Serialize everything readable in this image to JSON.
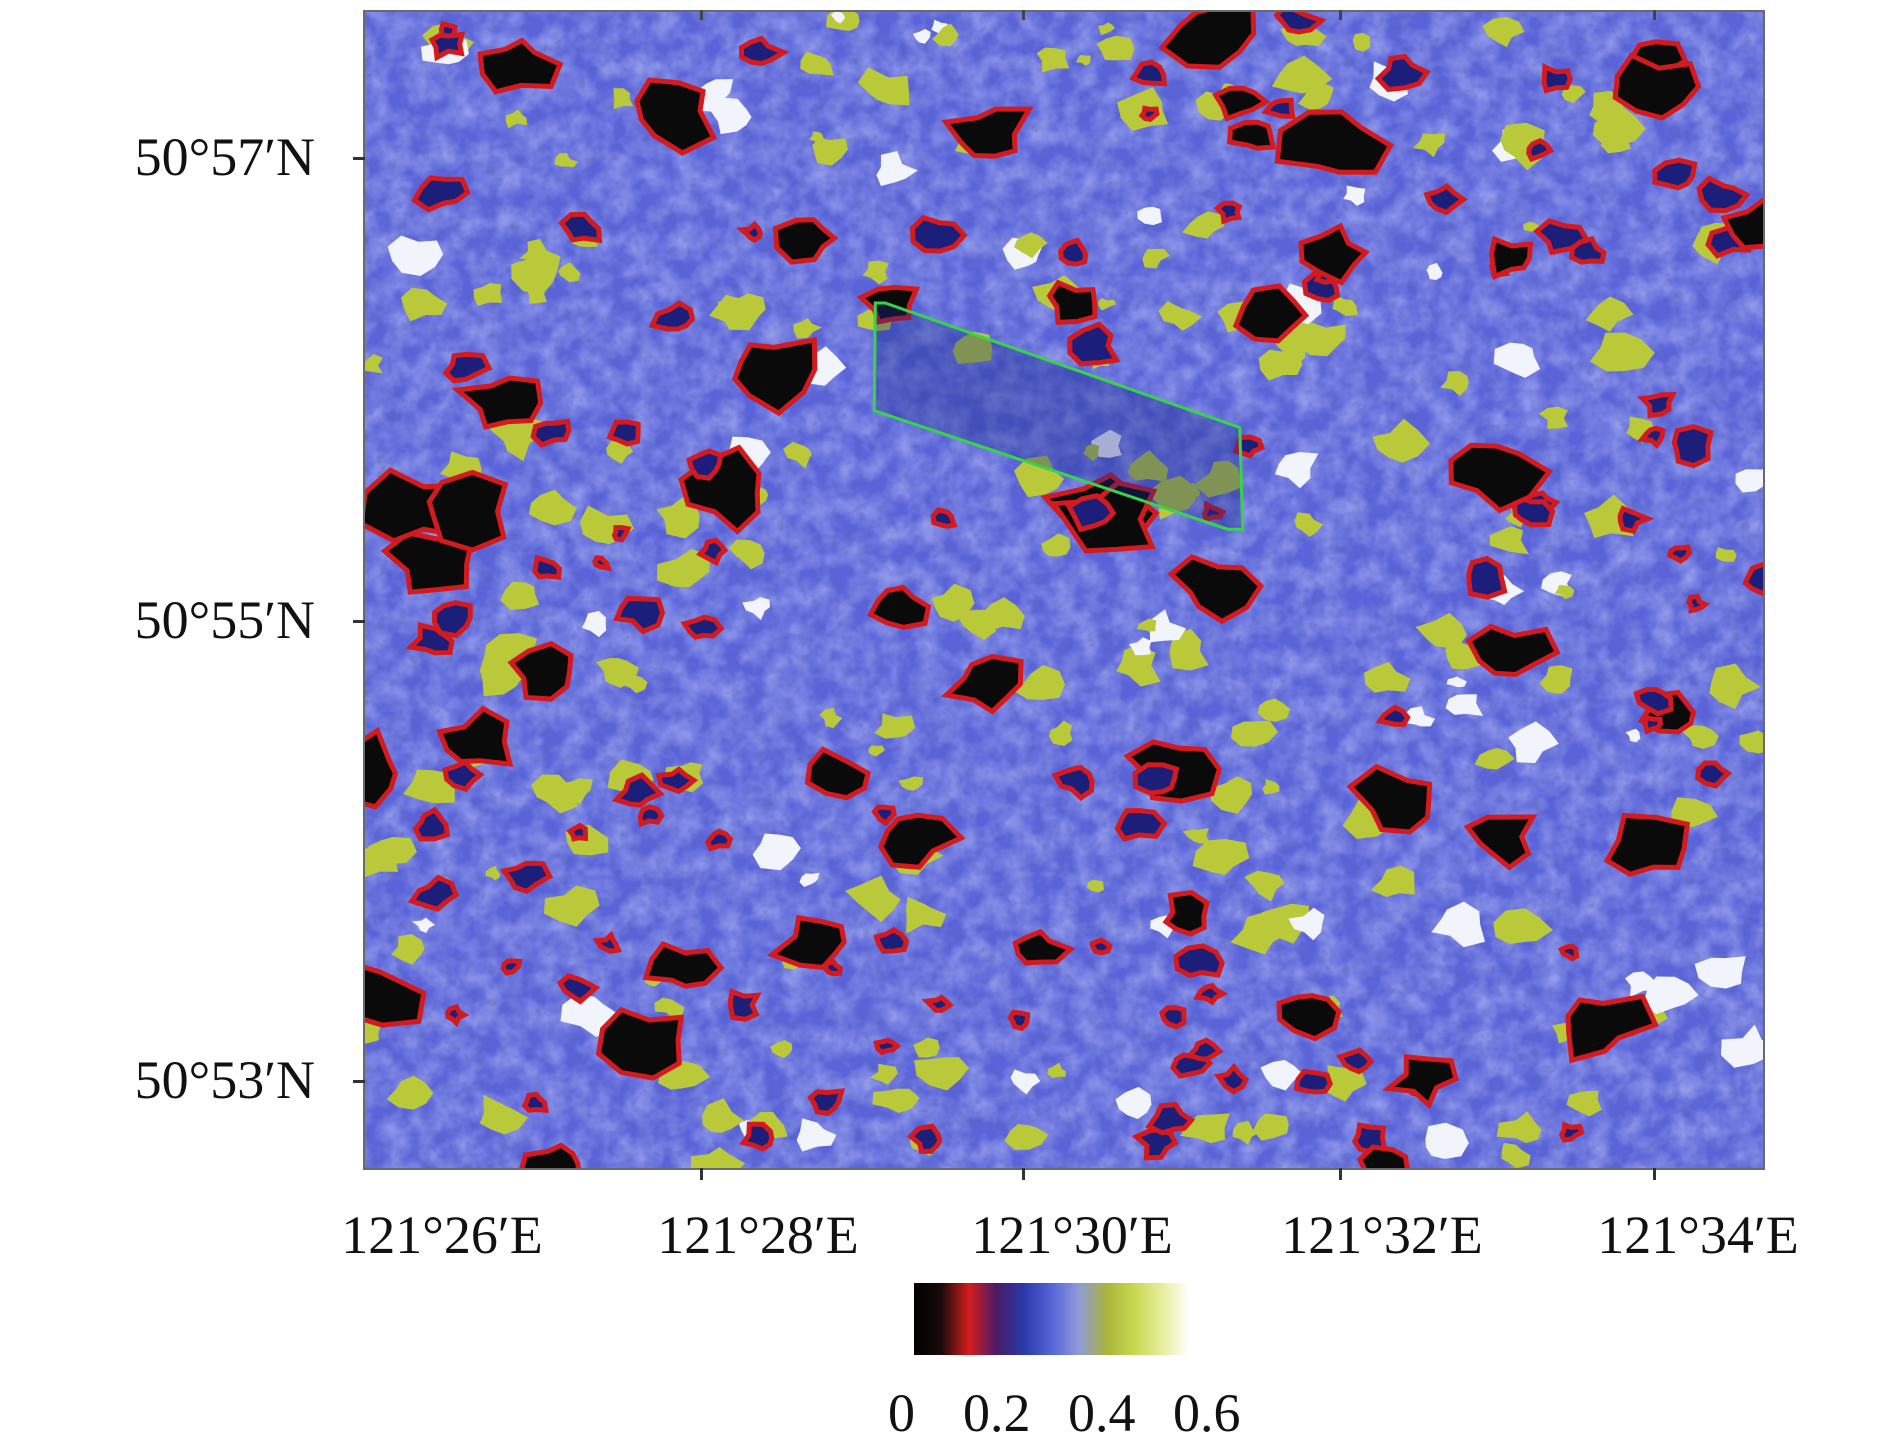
{
  "map": {
    "latitude_labels": [
      "50°57′N",
      "50°55′N",
      "50°53′N"
    ],
    "longitude_labels": [
      "121°26′E",
      "121°28′E",
      "121°30′E",
      "121°32′E",
      "121°34′E"
    ],
    "study_area_outline_color": "#39d34a",
    "colors": {
      "background_blue": "#5a64d8",
      "light_blue": "#9aa6ea",
      "dark_navy": "#1c1f7a",
      "red": "#d21a1f",
      "black": "#0a0a0a",
      "yellow_green": "#b9c93a",
      "white": "#f2f4fb"
    }
  },
  "colorbar": {
    "tick_labels": [
      "0",
      "0.2",
      "0.4",
      "0.6"
    ],
    "stops": [
      "#000000",
      "#1a0a0a",
      "#d41d1d",
      "#4a1a66",
      "#2a3aa8",
      "#5565d6",
      "#8f9ad8",
      "#a9b43c",
      "#c8d850",
      "#e4ee9a",
      "#ffffff"
    ]
  }
}
